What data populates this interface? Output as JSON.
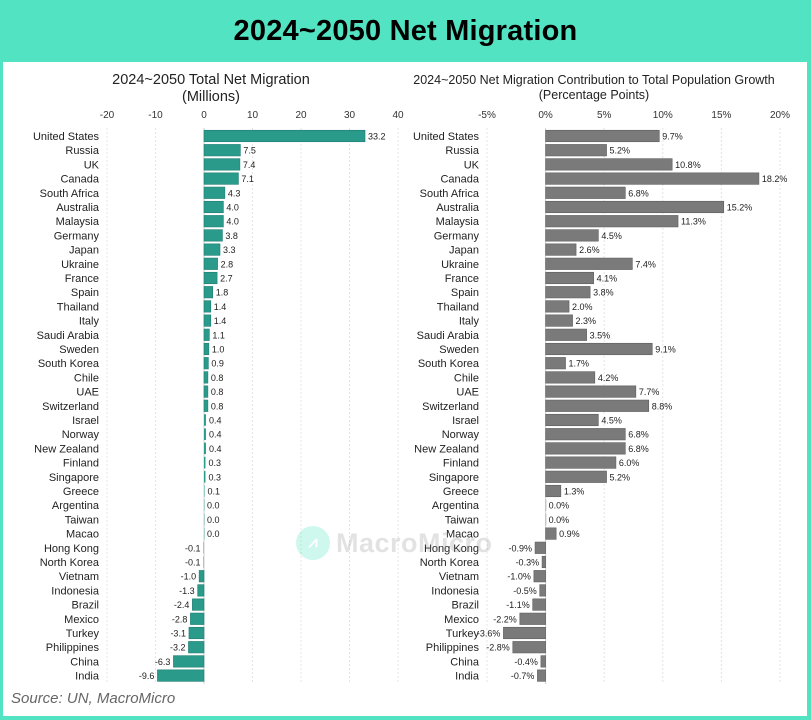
{
  "header": {
    "title": "2024~2050 Net Migration"
  },
  "source": "Source: UN, MacroMicro",
  "watermark": {
    "text": "MacroMicro",
    "icon": "chart-line-icon"
  },
  "colors": {
    "frame": "#52e3c2",
    "left_bar": "#2a9a8b",
    "right_bar": "#7a7a7a",
    "grid": "#e4e4e4"
  },
  "chart_data": [
    {
      "type": "bar",
      "orientation": "horizontal",
      "title": "2024~2050 Total Net Migration",
      "subtitle": "(Millions)",
      "xlabel": "",
      "ylabel": "",
      "xlim": [
        -20,
        40
      ],
      "xticks": [
        -20,
        -10,
        0,
        10,
        20,
        30,
        40
      ],
      "xtick_labels": [
        "-20",
        "-10",
        "0",
        "10",
        "20",
        "30",
        "40"
      ],
      "grid": true,
      "categories": [
        "United States",
        "Russia",
        "UK",
        "Canada",
        "South Africa",
        "Australia",
        "Malaysia",
        "Germany",
        "Japan",
        "Ukraine",
        "France",
        "Spain",
        "Thailand",
        "Italy",
        "Saudi Arabia",
        "Sweden",
        "South Korea",
        "Chile",
        "UAE",
        "Switzerland",
        "Israel",
        "Norway",
        "New Zealand",
        "Finland",
        "Singapore",
        "Greece",
        "Argentina",
        "Taiwan",
        "Macao",
        "Hong Kong",
        "North Korea",
        "Vietnam",
        "Indonesia",
        "Brazil",
        "Mexico",
        "Turkey",
        "Philippines",
        "China",
        "India"
      ],
      "values": [
        33.2,
        7.5,
        7.4,
        7.1,
        4.3,
        4.0,
        4.0,
        3.8,
        3.3,
        2.8,
        2.7,
        1.8,
        1.4,
        1.4,
        1.1,
        1.0,
        0.9,
        0.8,
        0.8,
        0.8,
        0.4,
        0.4,
        0.4,
        0.3,
        0.3,
        0.1,
        0.0,
        0.0,
        0.0,
        -0.1,
        -0.1,
        -1.0,
        -1.3,
        -2.4,
        -2.8,
        -3.1,
        -3.2,
        -6.3,
        -9.6
      ],
      "labels": [
        "33.2",
        "7.5",
        "7.4",
        "7.1",
        "4.3",
        "4.0",
        "4.0",
        "3.8",
        "3.3",
        "2.8",
        "2.7",
        "1.8",
        "1.4",
        "1.4",
        "1.1",
        "1.0",
        "0.9",
        "0.8",
        "0.8",
        "0.8",
        "0.4",
        "0.4",
        "0.4",
        "0.3",
        "0.3",
        "0.1",
        "0.0",
        "0.0",
        "0.0",
        "-0.1",
        "-0.1",
        "-1.0",
        "-1.3",
        "-2.4",
        "-2.8",
        "-3.1",
        "-3.2",
        "-6.3",
        "-9.6"
      ]
    },
    {
      "type": "bar",
      "orientation": "horizontal",
      "title": "2024~2050 Net Migration Contribution to Total Population Growth",
      "subtitle": "(Percentage Points)",
      "xlabel": "",
      "ylabel": "",
      "xlim": [
        -5,
        20
      ],
      "xticks": [
        -5,
        0,
        5,
        10,
        15,
        20
      ],
      "xtick_labels": [
        "-5%",
        "0%",
        "5%",
        "10%",
        "15%",
        "20%"
      ],
      "grid": true,
      "categories": [
        "United States",
        "Russia",
        "UK",
        "Canada",
        "South Africa",
        "Australia",
        "Malaysia",
        "Germany",
        "Japan",
        "Ukraine",
        "France",
        "Spain",
        "Thailand",
        "Italy",
        "Saudi Arabia",
        "Sweden",
        "South Korea",
        "Chile",
        "UAE",
        "Switzerland",
        "Israel",
        "Norway",
        "New Zealand",
        "Finland",
        "Singapore",
        "Greece",
        "Argentina",
        "Taiwan",
        "Macao",
        "Hong Kong",
        "North Korea",
        "Vietnam",
        "Indonesia",
        "Brazil",
        "Mexico",
        "Turkey",
        "Philippines",
        "China",
        "India"
      ],
      "values": [
        9.7,
        5.2,
        10.8,
        18.2,
        6.8,
        15.2,
        11.3,
        4.5,
        2.6,
        7.4,
        4.1,
        3.8,
        2.0,
        2.3,
        3.5,
        9.1,
        1.7,
        4.2,
        7.7,
        8.8,
        4.5,
        6.8,
        6.8,
        6.0,
        5.2,
        1.3,
        0.0,
        0.0,
        0.9,
        -0.9,
        -0.3,
        -1.0,
        -0.5,
        -1.1,
        -2.2,
        -3.6,
        -2.8,
        -0.4,
        -0.7
      ],
      "labels": [
        "9.7%",
        "5.2%",
        "10.8%",
        "18.2%",
        "6.8%",
        "15.2%",
        "11.3%",
        "4.5%",
        "2.6%",
        "7.4%",
        "4.1%",
        "3.8%",
        "2.0%",
        "2.3%",
        "3.5%",
        "9.1%",
        "1.7%",
        "4.2%",
        "7.7%",
        "8.8%",
        "4.5%",
        "6.8%",
        "6.8%",
        "6.0%",
        "5.2%",
        "1.3%",
        "0.0%",
        "0.0%",
        "0.9%",
        "-0.9%",
        "-0.3%",
        "-1.0%",
        "-0.5%",
        "-1.1%",
        "-2.2%",
        "-3.6%",
        "-2.8%",
        "-0.4%",
        "-0.7%"
      ]
    }
  ]
}
